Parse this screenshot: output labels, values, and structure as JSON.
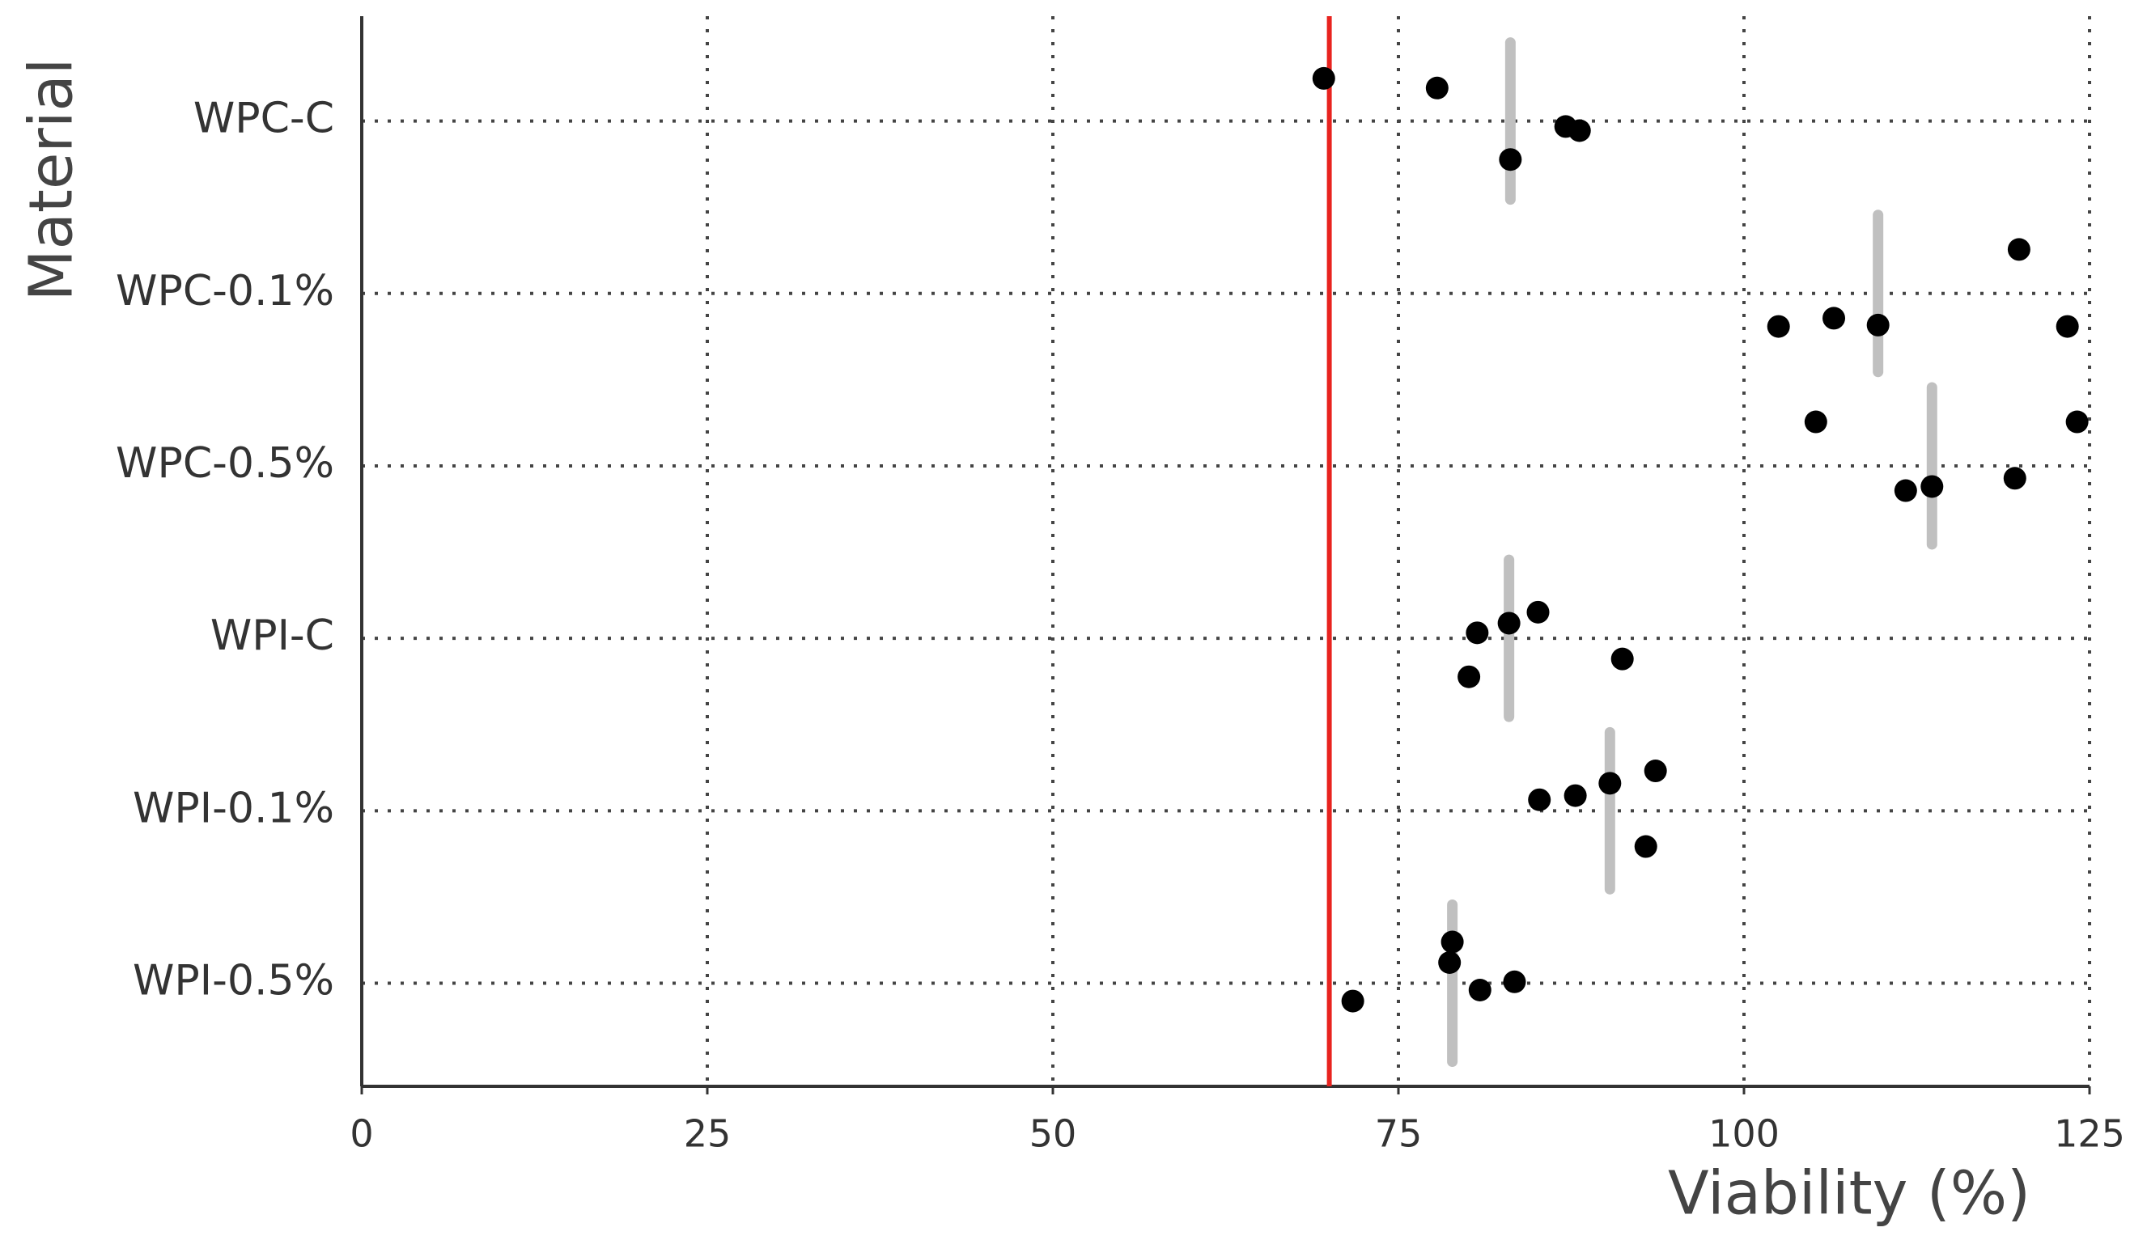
{
  "chart_data": {
    "type": "strip",
    "xlabel": "Viability (%)",
    "ylabel": "Material",
    "categories": [
      "WPC-C",
      "WPC-0.1%",
      "WPC-0.5%",
      "WPI-C",
      "WPI-0.1%",
      "WPI-0.5%"
    ],
    "series": [
      {
        "name": "WPC-C",
        "values": [
          69.6,
          77.8,
          87.1,
          88.1,
          83.1
        ]
      },
      {
        "name": "WPC-0.1%",
        "values": [
          119.9,
          102.5,
          106.5,
          109.7,
          123.4
        ]
      },
      {
        "name": "WPC-0.5%",
        "values": [
          105.2,
          124.1,
          111.7,
          113.6,
          119.6
        ]
      },
      {
        "name": "WPI-C",
        "values": [
          85.1,
          80.7,
          83.0,
          80.1,
          91.2
        ]
      },
      {
        "name": "WPI-0.1%",
        "values": [
          93.6,
          90.3,
          87.8,
          85.2,
          92.9
        ]
      },
      {
        "name": "WPI-0.5%",
        "values": [
          78.9,
          78.7,
          83.4,
          80.9,
          71.7
        ]
      }
    ],
    "medians": [
      83.1,
      109.7,
      113.6,
      83.0,
      90.3,
      78.9
    ],
    "point_color": "#000000",
    "median_color": "#c0c0c0",
    "reference_line": 70,
    "reference_color": "#e8231f",
    "xlim": [
      0,
      125
    ],
    "xticks": [
      0,
      25,
      50,
      75,
      100,
      125
    ],
    "grid": true
  }
}
